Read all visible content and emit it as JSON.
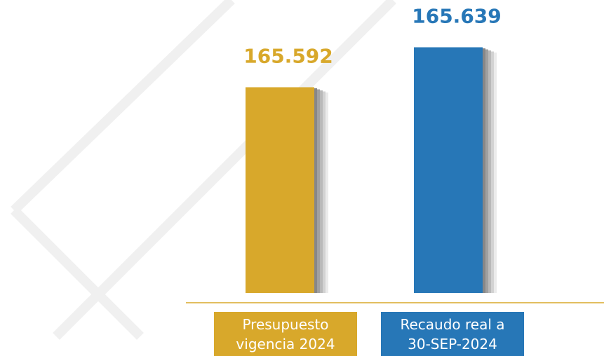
{
  "chart_data": {
    "type": "bar",
    "categories": [
      "Presupuesto vigencia 2024",
      "Recaudo real a 30-SEP-2024"
    ],
    "values": [
      165.592,
      165.639
    ],
    "colors": [
      "#d8a82b",
      "#2777b7"
    ],
    "ylim": [
      165.35,
      165.66
    ]
  }
}
